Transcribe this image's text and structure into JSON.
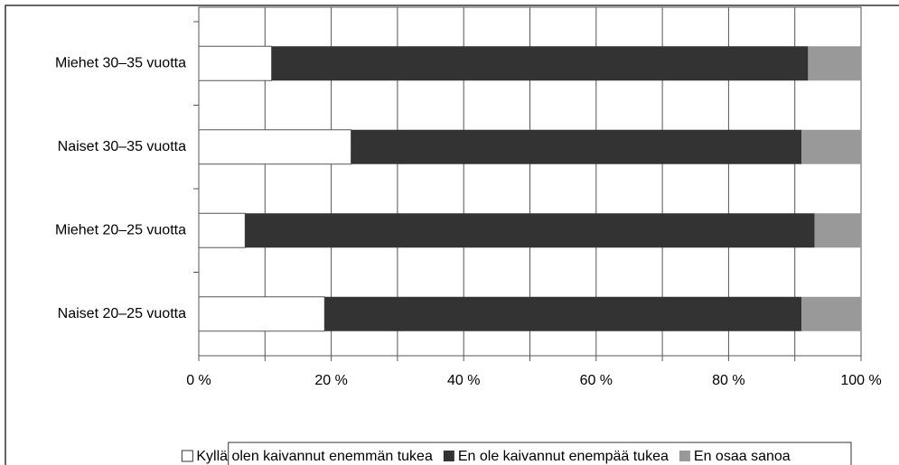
{
  "chart_data": {
    "type": "stacked_barh",
    "categories": [
      "Miehet 30–35 vuotta",
      "Naiset 30–35 vuotta",
      "Miehet 20–25 vuotta",
      "Naiset 20–25 vuotta"
    ],
    "series": [
      {
        "name": "Kyllä olen kaivannut enemmän tukea",
        "color": "#ffffff",
        "values": [
          11,
          23,
          7,
          19
        ]
      },
      {
        "name": "En ole kaivannut enempää tukea",
        "color": "#333333",
        "values": [
          81,
          68,
          86,
          72
        ]
      },
      {
        "name": "En osaa sanoa",
        "color": "#999999",
        "values": [
          8,
          9,
          7,
          9
        ]
      }
    ],
    "xlim": [
      0,
      100
    ],
    "xticks": [
      {
        "value": 0,
        "label": "0 %"
      },
      {
        "value": 20,
        "label": "20 %"
      },
      {
        "value": 40,
        "label": "40 %"
      },
      {
        "value": 60,
        "label": "60 %"
      },
      {
        "value": 80,
        "label": "80 %"
      },
      {
        "value": 100,
        "label": "100 %"
      }
    ],
    "x_minor_ticks": [
      10,
      30,
      50,
      70,
      90
    ],
    "grid": true,
    "legend": "bottom"
  }
}
